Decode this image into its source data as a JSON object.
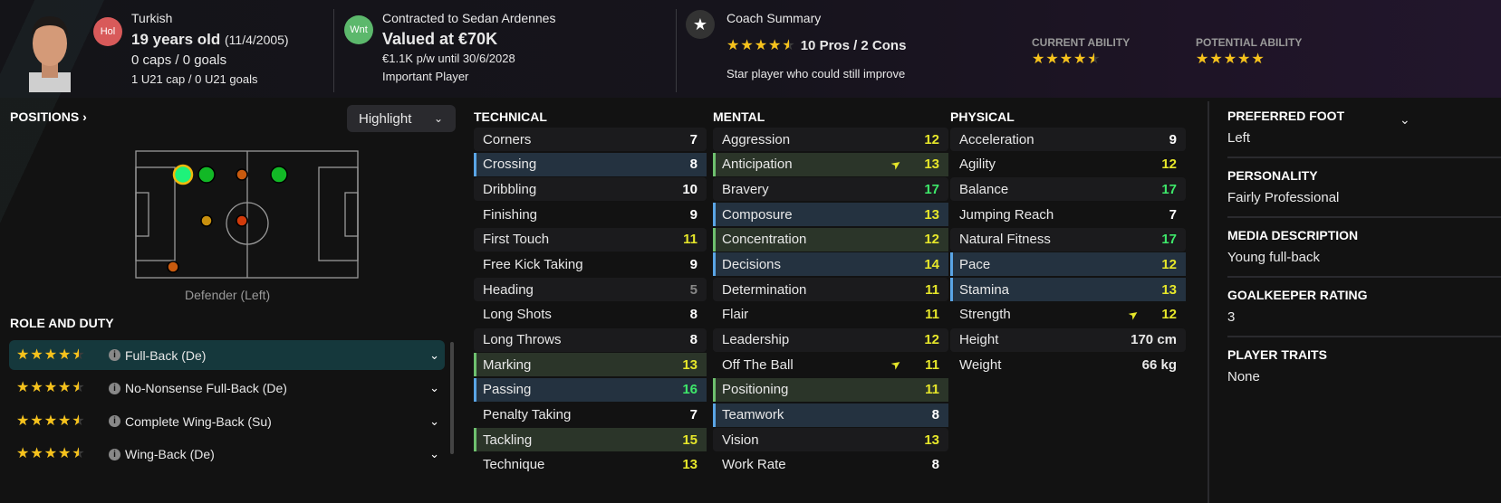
{
  "header": {
    "nationality": "Turkish",
    "age": "19 years old",
    "dob": "(11/4/2005)",
    "caps": "0 caps / 0 goals",
    "u21": "1 U21 cap / 0 U21 goals",
    "badge1": {
      "text": "Hol",
      "color": "#d85a5a"
    },
    "contract": "Contracted to Sedan Ardennes",
    "value": "Valued at €70K",
    "wage": "€1.1K p/w until 30/6/2028",
    "status": "Important Player",
    "badge2": {
      "text": "Wnt",
      "color": "#5cb86c"
    },
    "coach_title": "Coach Summary",
    "coach_stars": 4.5,
    "pros_cons": "10 Pros / 2 Cons",
    "coach_text": "Star player who could still improve",
    "current_ability_label": "CURRENT ABILITY",
    "current_ability_stars": 4.5,
    "potential_ability_label": "POTENTIAL ABILITY",
    "potential_ability_stars": 5
  },
  "positions": {
    "title": "POSITIONS",
    "highlight_label": "Highlight",
    "position_label": "Defender (Left)",
    "dots": [
      {
        "pos": "DL",
        "color": "#1ef27a",
        "selected": true
      },
      {
        "pos": "WBL",
        "color": "#12b826"
      },
      {
        "pos": "ML",
        "color": "#c85a0e"
      },
      {
        "pos": "AML",
        "color": "#12b826"
      },
      {
        "pos": "DM",
        "color": "#c8900e"
      },
      {
        "pos": "MC",
        "color": "#d23a0a"
      },
      {
        "pos": "DR",
        "color": "#c85a0e"
      }
    ]
  },
  "roles": {
    "title": "ROLE AND DUTY",
    "items": [
      {
        "stars": 4.5,
        "label": "Full-Back (De)",
        "selected": true
      },
      {
        "stars": 4.5,
        "label": "No-Nonsense Full-Back (De)"
      },
      {
        "stars": 4.5,
        "label": "Complete Wing-Back (Su)"
      },
      {
        "stars": 4.5,
        "label": "Wing-Back (De)"
      }
    ]
  },
  "attributes": {
    "technical": {
      "title": "TECHNICAL",
      "items": [
        {
          "name": "Corners",
          "value": 7
        },
        {
          "name": "Crossing",
          "value": 8,
          "hl": "blue"
        },
        {
          "name": "Dribbling",
          "value": 10
        },
        {
          "name": "Finishing",
          "value": 9
        },
        {
          "name": "First Touch",
          "value": 11
        },
        {
          "name": "Free Kick Taking",
          "value": 9
        },
        {
          "name": "Heading",
          "value": 5
        },
        {
          "name": "Long Shots",
          "value": 8
        },
        {
          "name": "Long Throws",
          "value": 8
        },
        {
          "name": "Marking",
          "value": 13,
          "hl": "green"
        },
        {
          "name": "Passing",
          "value": 16,
          "hl": "blue"
        },
        {
          "name": "Penalty Taking",
          "value": 7
        },
        {
          "name": "Tackling",
          "value": 15,
          "hl": "green"
        },
        {
          "name": "Technique",
          "value": 13
        }
      ]
    },
    "mental": {
      "title": "MENTAL",
      "items": [
        {
          "name": "Aggression",
          "value": 12
        },
        {
          "name": "Anticipation",
          "value": 13,
          "hl": "green",
          "trend": "up"
        },
        {
          "name": "Bravery",
          "value": 17
        },
        {
          "name": "Composure",
          "value": 13,
          "hl": "blue"
        },
        {
          "name": "Concentration",
          "value": 12,
          "hl": "green"
        },
        {
          "name": "Decisions",
          "value": 14,
          "hl": "blue"
        },
        {
          "name": "Determination",
          "value": 11
        },
        {
          "name": "Flair",
          "value": 11
        },
        {
          "name": "Leadership",
          "value": 12
        },
        {
          "name": "Off The Ball",
          "value": 11,
          "trend": "up"
        },
        {
          "name": "Positioning",
          "value": 11,
          "hl": "green"
        },
        {
          "name": "Teamwork",
          "value": 8,
          "hl": "blue"
        },
        {
          "name": "Vision",
          "value": 13
        },
        {
          "name": "Work Rate",
          "value": 8
        }
      ]
    },
    "physical": {
      "title": "PHYSICAL",
      "items": [
        {
          "name": "Acceleration",
          "value": 9
        },
        {
          "name": "Agility",
          "value": 12
        },
        {
          "name": "Balance",
          "value": 17
        },
        {
          "name": "Jumping Reach",
          "value": 7
        },
        {
          "name": "Natural Fitness",
          "value": 17
        },
        {
          "name": "Pace",
          "value": 12,
          "hl": "blue"
        },
        {
          "name": "Stamina",
          "value": 13,
          "hl": "blue"
        },
        {
          "name": "Strength",
          "value": 12,
          "trend": "up"
        }
      ]
    },
    "height": {
      "label": "Height",
      "value": "170 cm"
    },
    "weight": {
      "label": "Weight",
      "value": "66 kg"
    }
  },
  "side": [
    {
      "title": "PREFERRED FOOT",
      "value": "Left"
    },
    {
      "title": "PERSONALITY",
      "value": "Fairly Professional"
    },
    {
      "title": "MEDIA DESCRIPTION",
      "value": "Young full-back"
    },
    {
      "title": "GOALKEEPER RATING",
      "value": "3"
    },
    {
      "title": "PLAYER TRAITS",
      "value": "None"
    }
  ],
  "colors": {
    "low": "#888888",
    "normal": "#ffffff",
    "good": "#e6e62a",
    "great": "#3ee86a",
    "star": "#f6c21c"
  }
}
